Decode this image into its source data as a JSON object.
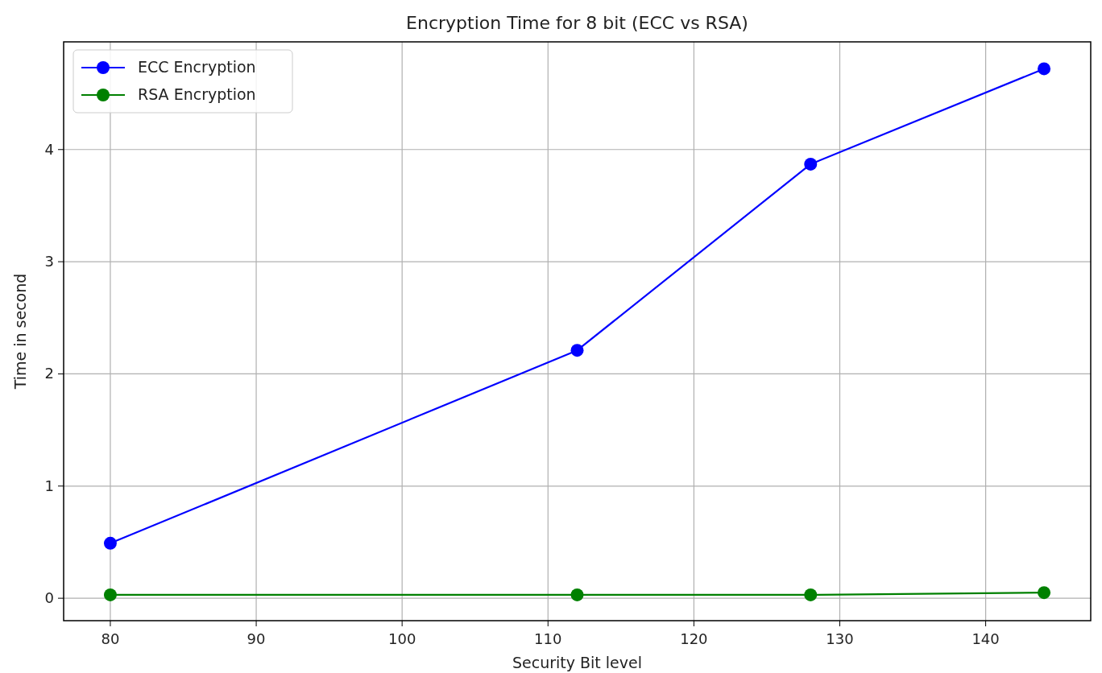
{
  "chart_data": {
    "type": "line",
    "title": "Encryption Time for 8 bit (ECC vs RSA)",
    "xlabel": "Security Bit level",
    "ylabel": "Time in second",
    "x": [
      80,
      112,
      128,
      144
    ],
    "series": [
      {
        "name": "ECC Encryption",
        "color": "#0000ff",
        "values": [
          0.49,
          2.21,
          3.87,
          4.72
        ]
      },
      {
        "name": "RSA Encryption",
        "color": "#008000",
        "values": [
          0.03,
          0.03,
          0.03,
          0.05
        ]
      }
    ],
    "xlim": [
      76.8,
      147.2
    ],
    "xticks": [
      80,
      90,
      100,
      110,
      120,
      130,
      140
    ],
    "ylim": [
      -0.2,
      4.96
    ],
    "yticks": [
      0,
      1,
      2,
      3,
      4
    ],
    "grid": true,
    "legend": "top left",
    "marker": "circle",
    "line_style": "solid"
  }
}
